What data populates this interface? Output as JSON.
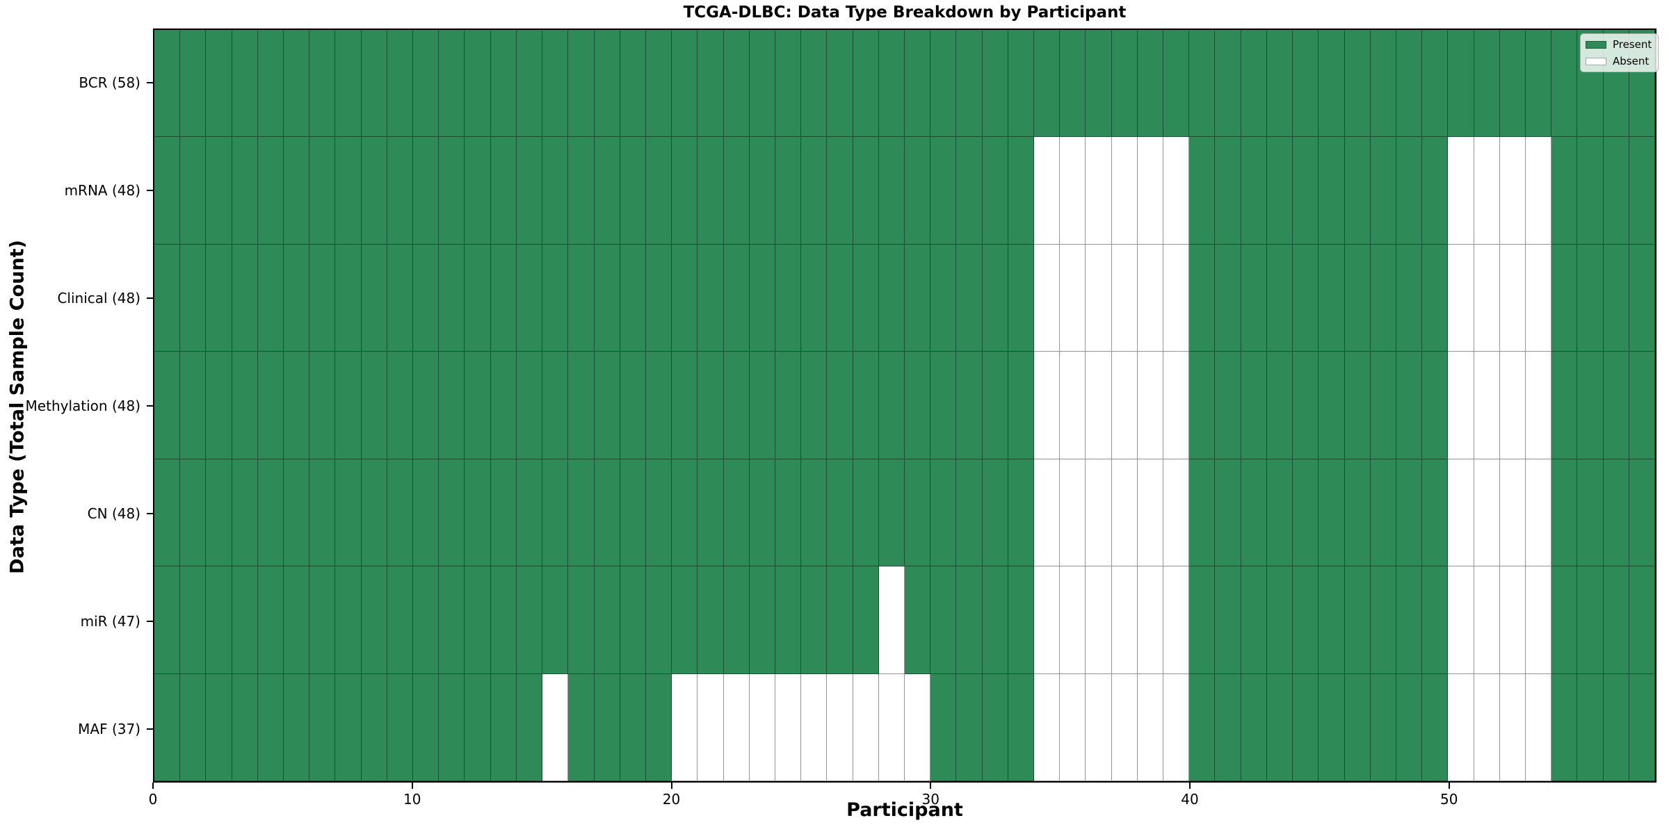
{
  "colors": {
    "present": "#2E8B57",
    "absent": "#ffffff",
    "cell_edge": "rgba(0,0,0,0.42)",
    "spine": "#000000"
  },
  "chart_data": {
    "type": "heatmap",
    "title": "TCGA-DLBC: Data Type Breakdown by Participant",
    "xlabel": "Participant",
    "ylabel": "Data Type (Total Sample Count)",
    "x_range": [
      0,
      58
    ],
    "x_ticks": [
      0,
      10,
      20,
      30,
      40,
      50
    ],
    "n_participants": 58,
    "legend_labels": [
      "Present",
      "Absent"
    ],
    "legend_position": "upper right",
    "rows": [
      {
        "label": "BCR (58)",
        "data_type": "BCR",
        "present_count": 58,
        "absent_participants": []
      },
      {
        "label": "mRNA (48)",
        "data_type": "mRNA",
        "present_count": 48,
        "absent_participants": [
          34,
          35,
          36,
          37,
          38,
          39,
          50,
          51,
          52,
          53
        ]
      },
      {
        "label": "Clinical (48)",
        "data_type": "Clinical",
        "present_count": 48,
        "absent_participants": [
          34,
          35,
          36,
          37,
          38,
          39,
          50,
          51,
          52,
          53
        ]
      },
      {
        "label": "Methylation (48)",
        "data_type": "Methylation",
        "present_count": 48,
        "absent_participants": [
          34,
          35,
          36,
          37,
          38,
          39,
          50,
          51,
          52,
          53
        ]
      },
      {
        "label": "CN (48)",
        "data_type": "CN",
        "present_count": 48,
        "absent_participants": [
          34,
          35,
          36,
          37,
          38,
          39,
          50,
          51,
          52,
          53
        ]
      },
      {
        "label": "miR (47)",
        "data_type": "miR",
        "present_count": 47,
        "absent_participants": [
          28,
          34,
          35,
          36,
          37,
          38,
          39,
          50,
          51,
          52,
          53
        ]
      },
      {
        "label": "MAF (37)",
        "data_type": "MAF",
        "present_count": 37,
        "absent_participants": [
          15,
          20,
          21,
          22,
          23,
          24,
          25,
          26,
          27,
          28,
          29,
          34,
          35,
          36,
          37,
          38,
          39,
          50,
          51,
          52,
          53
        ]
      }
    ]
  }
}
